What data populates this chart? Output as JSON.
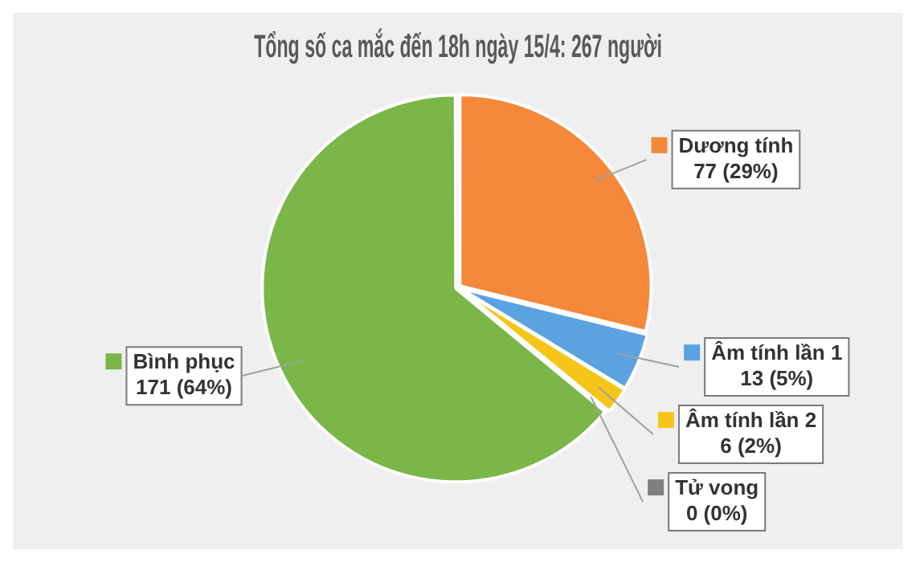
{
  "chart_data": {
    "type": "pie",
    "title": "Tổng số ca mắc đến 18h ngày 15/4: 267 người",
    "categories": [
      "Dương tính",
      "Âm tính lần 1",
      "Âm tính lần 2",
      "Tử vong",
      "Bình phục"
    ],
    "values": [
      77,
      13,
      6,
      0,
      171
    ],
    "value_labels": [
      "77 (29%)",
      "13 (5%)",
      "6 (2%)",
      "0 (0%)",
      "171 (64%)"
    ],
    "colors": [
      "#f5883a",
      "#5ba3e0",
      "#f5c518",
      "#7f7f7f",
      "#7ab648"
    ],
    "legend": "right"
  }
}
